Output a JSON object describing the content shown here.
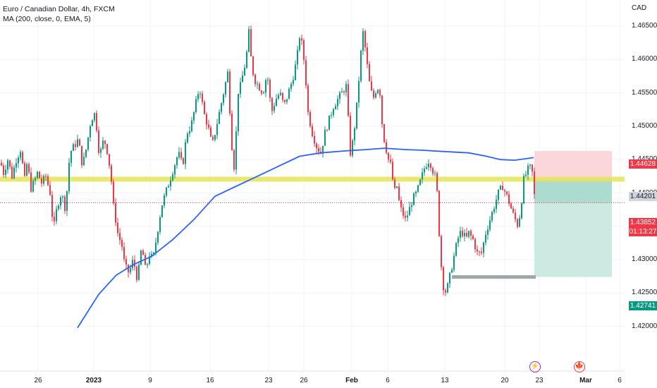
{
  "legend": {
    "symbol": "Euro / Canadian Dollar, 4h, FXCM",
    "indicator": "MA (200, close, 0, EMA, 5)"
  },
  "price_axis": {
    "currency": "CAD",
    "ticks": [
      "1.46500",
      "1.46000",
      "1.45500",
      "1.45000",
      "1.44500",
      "1.44000",
      "1.43500",
      "1.43000",
      "1.42500",
      "1.42000"
    ]
  },
  "time_axis": {
    "ticks": [
      "26",
      "2023",
      "9",
      "16",
      "23",
      "26",
      "Feb",
      "6",
      "13",
      "20",
      "23",
      "Mar",
      "6"
    ]
  },
  "price_tags": {
    "stop_loss": "1.44628",
    "resistance": "1.44201",
    "last_price": "1.43852",
    "countdown": "01:13:27",
    "take_profit": "1.42741"
  },
  "colors": {
    "bull": "#089981",
    "bear": "#f23645",
    "ma_line": "#2962ff",
    "resistance_band": "#e8e35a",
    "stop_zone": "#fbd7da",
    "profit_zone": "#cce9e2",
    "support_line": "#9ea7a7"
  },
  "events": [
    {
      "icon": "lightning-icon",
      "glyph": "⚡"
    },
    {
      "icon": "canada-flag-icon",
      "glyph": "🍁"
    }
  ],
  "chart_data": {
    "type": "candlestick",
    "symbol": "EURCAD",
    "timeframe": "4h",
    "y_range": [
      1.418,
      1.4675
    ],
    "price_path": [
      [
        0,
        1.4445
      ],
      [
        4,
        1.443
      ],
      [
        10,
        1.445
      ],
      [
        16,
        1.4425
      ],
      [
        22,
        1.445
      ],
      [
        28,
        1.4465
      ],
      [
        34,
        1.442
      ],
      [
        38,
        1.445
      ],
      [
        42,
        1.4405
      ],
      [
        48,
        1.4418
      ],
      [
        52,
        1.443
      ],
      [
        58,
        1.4415
      ],
      [
        64,
        1.4425
      ],
      [
        70,
        1.44
      ],
      [
        75,
        1.4345
      ],
      [
        80,
        1.438
      ],
      [
        86,
        1.44
      ],
      [
        92,
        1.4375
      ],
      [
        98,
        1.446
      ],
      [
        104,
        1.447
      ],
      [
        110,
        1.448
      ],
      [
        116,
        1.444
      ],
      [
        122,
        1.447
      ],
      [
        128,
        1.451
      ],
      [
        134,
        1.452
      ],
      [
        140,
        1.4455
      ],
      [
        146,
        1.448
      ],
      [
        150,
        1.447
      ],
      [
        156,
        1.443
      ],
      [
        160,
        1.438
      ],
      [
        166,
        1.434
      ],
      [
        172,
        1.432
      ],
      [
        176,
        1.429
      ],
      [
        182,
        1.428
      ],
      [
        188,
        1.43
      ],
      [
        194,
        1.427
      ],
      [
        200,
        1.432
      ],
      [
        206,
        1.428
      ],
      [
        210,
        1.431
      ],
      [
        216,
        1.43
      ],
      [
        222,
        1.434
      ],
      [
        228,
        1.438
      ],
      [
        234,
        1.44
      ],
      [
        240,
        1.442
      ],
      [
        246,
        1.444
      ],
      [
        252,
        1.446
      ],
      [
        258,
        1.444
      ],
      [
        264,
        1.449
      ],
      [
        270,
        1.45
      ],
      [
        276,
        1.453
      ],
      [
        282,
        1.456
      ],
      [
        288,
        1.452
      ],
      [
        294,
        1.45
      ],
      [
        300,
        1.447
      ],
      [
        306,
        1.45
      ],
      [
        312,
        1.453
      ],
      [
        318,
        1.456
      ],
      [
        322,
        1.458
      ],
      [
        328,
        1.447
      ],
      [
        332,
        1.443
      ],
      [
        336,
        1.455
      ],
      [
        340,
        1.456
      ],
      [
        344,
        1.458
      ],
      [
        348,
        1.46
      ],
      [
        352,
        1.464
      ],
      [
        356,
        1.459
      ],
      [
        360,
        1.457
      ],
      [
        366,
        1.456
      ],
      [
        372,
        1.455
      ],
      [
        378,
        1.458
      ],
      [
        384,
        1.452
      ],
      [
        390,
        1.454
      ],
      [
        396,
        1.455
      ],
      [
        402,
        1.453
      ],
      [
        408,
        1.455
      ],
      [
        414,
        1.457
      ],
      [
        420,
        1.46
      ],
      [
        424,
        1.4635
      ],
      [
        428,
        1.462
      ],
      [
        432,
        1.458
      ],
      [
        436,
        1.452
      ],
      [
        442,
        1.449
      ],
      [
        448,
        1.447
      ],
      [
        454,
        1.446
      ],
      [
        460,
        1.449
      ],
      [
        466,
        1.451
      ],
      [
        472,
        1.453
      ],
      [
        478,
        1.454
      ],
      [
        484,
        1.455
      ],
      [
        490,
        1.456
      ],
      [
        496,
        1.446
      ],
      [
        500,
        1.448
      ],
      [
        506,
        1.454
      ],
      [
        510,
        1.46
      ],
      [
        514,
        1.464
      ],
      [
        518,
        1.461
      ],
      [
        522,
        1.457
      ],
      [
        528,
        1.454
      ],
      [
        534,
        1.456
      ],
      [
        538,
        1.455
      ],
      [
        542,
        1.449
      ],
      [
        546,
        1.447
      ],
      [
        550,
        1.445
      ],
      [
        554,
        1.444
      ],
      [
        558,
        1.44
      ],
      [
        562,
        1.441
      ],
      [
        566,
        1.438
      ],
      [
        570,
        1.437
      ],
      [
        574,
        1.436
      ],
      [
        578,
        1.437
      ],
      [
        584,
        1.439
      ],
      [
        590,
        1.44
      ],
      [
        596,
        1.442
      ],
      [
        602,
        1.444
      ],
      [
        608,
        1.445
      ],
      [
        614,
        1.443
      ],
      [
        618,
        1.442
      ],
      [
        620,
        1.438
      ],
      [
        624,
        1.43
      ],
      [
        628,
        1.426
      ],
      [
        632,
        1.425
      ],
      [
        636,
        1.427
      ],
      [
        640,
        1.429
      ],
      [
        644,
        1.431
      ],
      [
        648,
        1.433
      ],
      [
        652,
        1.434
      ],
      [
        656,
        1.434
      ],
      [
        660,
        1.433
      ],
      [
        664,
        1.434
      ],
      [
        670,
        1.433
      ],
      [
        676,
        1.431
      ],
      [
        682,
        1.431
      ],
      [
        688,
        1.434
      ],
      [
        694,
        1.436
      ],
      [
        700,
        1.438
      ],
      [
        706,
        1.44
      ],
      [
        712,
        1.441
      ],
      [
        716,
        1.44
      ],
      [
        720,
        1.439
      ],
      [
        726,
        1.437
      ],
      [
        730,
        1.436
      ],
      [
        734,
        1.435
      ],
      [
        738,
        1.438
      ],
      [
        742,
        1.442
      ],
      [
        746,
        1.443
      ],
      [
        750,
        1.444
      ],
      [
        754,
        1.443
      ],
      [
        758,
        1.4385
      ]
    ],
    "ma_path": [
      [
        110,
        1.4198
      ],
      [
        140,
        1.4248
      ],
      [
        165,
        1.4277
      ],
      [
        190,
        1.4293
      ],
      [
        215,
        1.4305
      ],
      [
        245,
        1.433
      ],
      [
        275,
        1.436
      ],
      [
        305,
        1.4395
      ],
      [
        335,
        1.441
      ],
      [
        365,
        1.4425
      ],
      [
        395,
        1.444
      ],
      [
        425,
        1.4455
      ],
      [
        455,
        1.446
      ],
      [
        490,
        1.4463
      ],
      [
        520,
        1.4465
      ],
      [
        545,
        1.4467
      ],
      [
        575,
        1.4465
      ],
      [
        600,
        1.4464
      ],
      [
        630,
        1.4462
      ],
      [
        665,
        1.446
      ],
      [
        690,
        1.4455
      ],
      [
        710,
        1.445
      ],
      [
        730,
        1.4449
      ],
      [
        757,
        1.4453
      ]
    ],
    "levels": {
      "resistance": 1.44201,
      "stop_loss": 1.44628,
      "entry": 1.43852,
      "take_profit": 1.42741
    }
  }
}
